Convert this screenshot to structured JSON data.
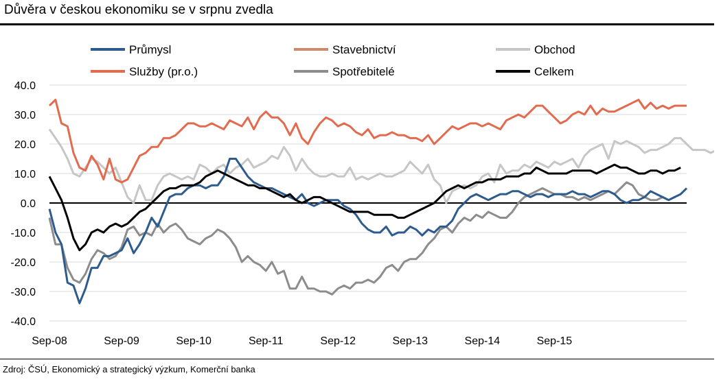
{
  "header": {
    "title": "Důvěra v českou ekonomiku se v srpnu zvedla"
  },
  "footer": {
    "source": "Zdroj: ČSÚ, Ekonomický a strategický výzkum, Komerční banka"
  },
  "chart_data": {
    "type": "line",
    "x_labels": [
      "Sep-08",
      "Sep-09",
      "Sep-10",
      "Sep-11",
      "Sep-12",
      "Sep-13",
      "Sep-14",
      "Sep-15"
    ],
    "x_start": "2008-09",
    "ylim": [
      -40,
      40
    ],
    "yticks": [
      "40.0",
      "30.0",
      "20.0",
      "10.0",
      "0.0",
      "-10.0",
      "-20.0",
      "-30.0",
      "-40.0"
    ],
    "grid": true,
    "legend_position": "top",
    "series": [
      {
        "name": "Průmysl",
        "color": "#2E5B8E",
        "values": [
          -2,
          -10,
          -14,
          -27,
          -28,
          -34,
          -29,
          -22,
          -22,
          -18,
          -18,
          -17,
          -16,
          -12,
          -17,
          -14,
          -10,
          -5,
          -8,
          -3,
          2,
          3,
          3,
          5,
          6,
          6,
          5,
          6,
          6,
          9,
          15,
          15,
          12,
          9,
          7,
          6,
          5,
          5,
          4,
          3,
          2,
          1,
          3,
          0,
          -1,
          0,
          1,
          1,
          1,
          -1,
          -2,
          -4,
          -7,
          -9,
          -10,
          -10,
          -8,
          -11,
          -10,
          -10,
          -8,
          -9,
          -11,
          -9,
          -10,
          -8,
          -8,
          -6,
          -2,
          0,
          2,
          3,
          2,
          1,
          2,
          3,
          3,
          4,
          4,
          3,
          2,
          3,
          3,
          2,
          3,
          3,
          3,
          4,
          3,
          3,
          2,
          3,
          4,
          4,
          3,
          1,
          0,
          1,
          1,
          2,
          4,
          3,
          2,
          1,
          2,
          3,
          5
        ]
      },
      {
        "name": "Stavebnictví",
        "color": "#C98B6C",
        "values": []
      },
      {
        "name": "Obchod",
        "color": "#C6C6C6",
        "values": [
          25,
          22,
          19,
          15,
          10,
          9,
          12,
          15,
          14,
          12,
          10,
          12,
          7,
          2,
          0,
          6,
          1,
          1,
          6,
          9,
          10,
          9,
          8,
          9,
          8,
          13,
          12,
          10,
          12,
          13,
          10,
          12,
          13,
          15,
          12,
          13,
          14,
          16,
          15,
          19,
          16,
          11,
          15,
          12,
          10,
          9,
          9,
          10,
          9,
          9,
          12,
          8,
          9,
          8,
          9,
          10,
          9,
          9,
          10,
          11,
          14,
          12,
          10,
          13,
          8,
          6,
          0,
          4,
          5,
          6,
          5,
          6,
          9,
          10,
          7,
          13,
          10,
          11,
          11,
          13,
          12,
          14,
          13,
          12,
          14,
          13,
          14,
          15,
          12,
          16,
          18,
          19,
          20,
          15,
          21,
          20,
          21,
          20,
          19,
          17,
          18,
          18,
          19,
          20,
          22,
          22,
          20,
          18,
          18,
          18,
          17,
          18
        ]
      },
      {
        "name": "Služby (pr.o.)",
        "color": "#E26B4F",
        "values": [
          33,
          35,
          27,
          26,
          17,
          12,
          11,
          16,
          13,
          8,
          15,
          8,
          7,
          8,
          12,
          16,
          17,
          19,
          19,
          22,
          22,
          23,
          25,
          27,
          27,
          26,
          26,
          27,
          26,
          25,
          28,
          27,
          26,
          29,
          25,
          29,
          31,
          29,
          29,
          27,
          23,
          27,
          22,
          20,
          24,
          27,
          29,
          28,
          26,
          27,
          26,
          24,
          23,
          25,
          22,
          23,
          23,
          24,
          23,
          23,
          22,
          22,
          21,
          23,
          20,
          22,
          24,
          26,
          25,
          26,
          27,
          27,
          26,
          27,
          26,
          25,
          28,
          29,
          30,
          29,
          31,
          33,
          33,
          31,
          29,
          27,
          28,
          30,
          31,
          30,
          33,
          30,
          32,
          31,
          31,
          32,
          33,
          34,
          35,
          32,
          34,
          32,
          33,
          32,
          33,
          33,
          33
        ]
      },
      {
        "name": "Spotřebitelé",
        "color": "#8C8C8C",
        "values": [
          -5,
          -14,
          -14,
          -22,
          -26,
          -27,
          -24,
          -19,
          -16,
          -17,
          -19,
          -18,
          -15,
          -9,
          -8,
          -11,
          -10,
          -11,
          -7,
          -10,
          -8,
          -7,
          -9,
          -12,
          -13,
          -14,
          -12,
          -11,
          -9,
          -10,
          -12,
          -15,
          -20,
          -18,
          -20,
          -21,
          -23,
          -20,
          -24,
          -23,
          -29,
          -29,
          -25,
          -29,
          -29,
          -30,
          -30,
          -31,
          -29,
          -28,
          -29,
          -27,
          -27,
          -26,
          -27,
          -25,
          -22,
          -21,
          -23,
          -20,
          -19,
          -19,
          -17,
          -14,
          -12,
          -9,
          -8,
          -10,
          -7,
          -5,
          -6,
          -4,
          -5,
          -3,
          -4,
          -5,
          -5,
          -3,
          0,
          2,
          3,
          4,
          5,
          4,
          3,
          3,
          2,
          2,
          1,
          2,
          1,
          2,
          3,
          4,
          3,
          5,
          7,
          6,
          3,
          2,
          1,
          1,
          2,
          1,
          2
        ]
      },
      {
        "name": "Celkem",
        "color": "#000000",
        "values": [
          9,
          5,
          1,
          -5,
          -12,
          -16,
          -14,
          -10,
          -9,
          -10,
          -8,
          -7,
          -8,
          -7,
          -5,
          -3,
          -2,
          0,
          2,
          4,
          5,
          5,
          6,
          6,
          6,
          7,
          9,
          10,
          11,
          10,
          9,
          8,
          7,
          6,
          6,
          5,
          5,
          4,
          3,
          2,
          3,
          1,
          0,
          1,
          2,
          2,
          1,
          0,
          -1,
          -2,
          -3,
          -3,
          -3,
          -3,
          -4,
          -4,
          -4,
          -4,
          -5,
          -5,
          -4,
          -3,
          -2,
          -1,
          0,
          2,
          4,
          5,
          6,
          5,
          6,
          7,
          7,
          8,
          8,
          8,
          9,
          9,
          9,
          10,
          10,
          12,
          11,
          10,
          10,
          10,
          10,
          11,
          11,
          11,
          11,
          10,
          11,
          12,
          13,
          12,
          12,
          11,
          10,
          10,
          11,
          11,
          10,
          11,
          11,
          12
        ]
      }
    ]
  }
}
